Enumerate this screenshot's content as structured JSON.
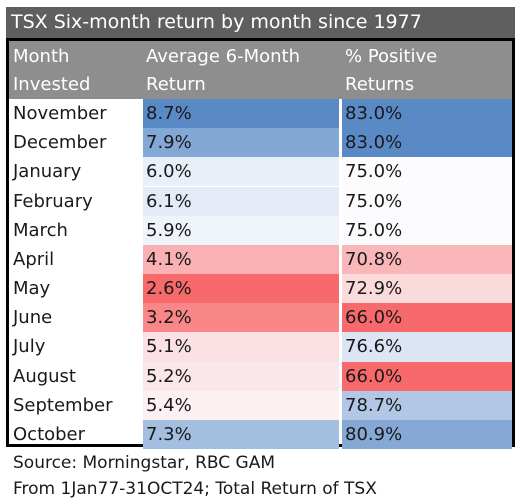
{
  "chart_data": {
    "type": "table",
    "title": "TSX Six-month return by month since 1977",
    "columns": [
      [
        "Month",
        "Invested"
      ],
      [
        "Average 6-Month",
        "Return"
      ],
      [
        "% Positive",
        "Returns"
      ]
    ],
    "rows": [
      {
        "month": "November",
        "avg_return": "8.7%",
        "avg_value": 8.7,
        "pct_positive": "83.0%",
        "pct_value": 83.0
      },
      {
        "month": "December",
        "avg_return": "7.9%",
        "avg_value": 7.9,
        "pct_positive": "83.0%",
        "pct_value": 83.0
      },
      {
        "month": "January",
        "avg_return": "6.0%",
        "avg_value": 6.0,
        "pct_positive": "75.0%",
        "pct_value": 75.0
      },
      {
        "month": "February",
        "avg_return": "6.1%",
        "avg_value": 6.1,
        "pct_positive": "75.0%",
        "pct_value": 75.0
      },
      {
        "month": "March",
        "avg_return": "5.9%",
        "avg_value": 5.9,
        "pct_positive": "75.0%",
        "pct_value": 75.0
      },
      {
        "month": "April",
        "avg_return": "4.1%",
        "avg_value": 4.1,
        "pct_positive": "70.8%",
        "pct_value": 70.8
      },
      {
        "month": "May",
        "avg_return": "2.6%",
        "avg_value": 2.6,
        "pct_positive": "72.9%",
        "pct_value": 72.9
      },
      {
        "month": "June",
        "avg_return": "3.2%",
        "avg_value": 3.2,
        "pct_positive": "66.0%",
        "pct_value": 66.0
      },
      {
        "month": "July",
        "avg_return": "5.1%",
        "avg_value": 5.1,
        "pct_positive": "76.6%",
        "pct_value": 76.6
      },
      {
        "month": "August",
        "avg_return": "5.2%",
        "avg_value": 5.2,
        "pct_positive": "66.0%",
        "pct_value": 66.0
      },
      {
        "month": "September",
        "avg_return": "5.4%",
        "avg_value": 5.4,
        "pct_positive": "78.7%",
        "pct_value": 78.7
      },
      {
        "month": "October",
        "avg_return": "7.3%",
        "avg_value": 7.3,
        "pct_positive": "80.9%",
        "pct_value": 80.9
      }
    ],
    "color_scale": {
      "low": "#f8696b",
      "mid": "#fcfcff",
      "high": "#5a8ac6"
    },
    "source_lines": [
      "Source: Morningstar, RBC GAM",
      "From 1Jan77-31OCT24; Total Return of TSX"
    ]
  },
  "colors": {
    "title_bg": "#5f5f5f",
    "header_bg": "#8e8e8e",
    "border": "#000000",
    "text": "#1a1a1a"
  }
}
